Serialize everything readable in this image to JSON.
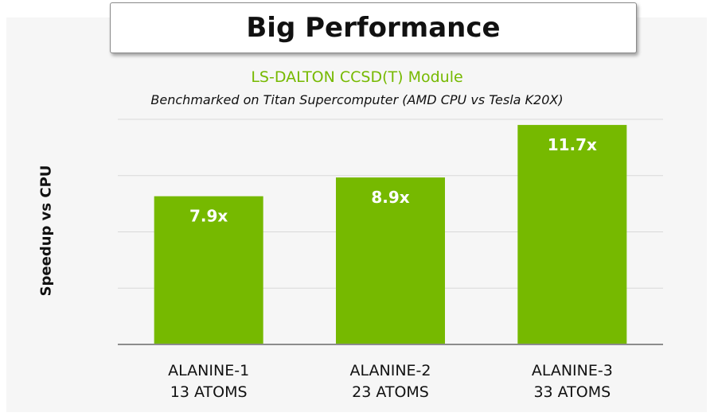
{
  "slide": {
    "title": "Big Performance"
  },
  "chart_data": {
    "type": "bar",
    "title": "LS-DALTON CCSD(T) Module",
    "subtitle": "Benchmarked on Titan Supercomputer (AMD CPU vs Tesla K20X)",
    "xlabel": "",
    "ylabel": "Speedup vs CPU",
    "categories": [
      [
        "ALANINE-1",
        "13 ATOMS"
      ],
      [
        "ALANINE-2",
        "23 ATOMS"
      ],
      [
        "ALANINE-3",
        "33 ATOMS"
      ]
    ],
    "values": [
      7.9,
      8.9,
      11.7
    ],
    "data_labels": [
      "7.9x",
      "8.9x",
      "11.7x"
    ],
    "ylim": [
      0,
      12
    ],
    "grid": true,
    "legend": "none",
    "colors": {
      "bar": "#76b900",
      "title": "#76b900",
      "grid": "#d9d9d9",
      "axis": "#8c8c8c",
      "data_label": "#ffffff"
    }
  }
}
